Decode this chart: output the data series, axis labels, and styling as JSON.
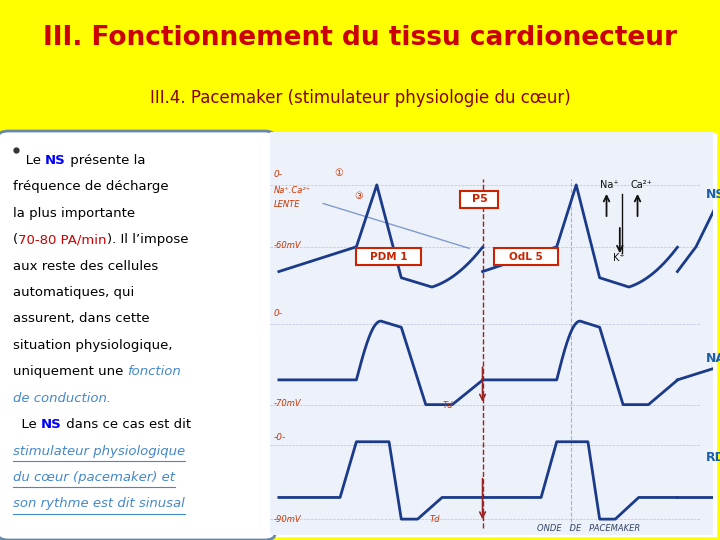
{
  "title": "III. Fonctionnement du tissu cardionecteur",
  "subtitle": "III.4. Pacemaker (stimulateur physiologie du cœur)",
  "title_color": "#cc0000",
  "subtitle_color": "#8b0000",
  "bg_color": "#ffff00",
  "text_box_border_color": "#6688aa",
  "body_bg": "#dde4ee",
  "diagram_bg": "#eef0f8",
  "ns_label_color": "#1a5fa8",
  "nav_label_color": "#1a5fa8",
  "rdpj_label_color": "#1a5fa8",
  "trace_color": "#1a3a8a",
  "annot_color": "#cc2200",
  "bullet_text_lines": [
    {
      "parts": [
        {
          "text": "   Le ",
          "bold": false,
          "color": "#000000",
          "italic": false
        },
        {
          "text": "NS",
          "bold": true,
          "color": "#0000ff",
          "italic": false
        },
        {
          "text": " présente la",
          "bold": false,
          "color": "#000000",
          "italic": false
        }
      ]
    },
    {
      "parts": [
        {
          "text": "fréquence de décharge",
          "bold": false,
          "color": "#000000",
          "italic": false
        }
      ]
    },
    {
      "parts": [
        {
          "text": "la plus importante",
          "bold": false,
          "color": "#000000",
          "italic": false
        }
      ]
    },
    {
      "parts": [
        {
          "text": "(",
          "bold": false,
          "color": "#000000",
          "italic": false
        },
        {
          "text": "70-80 PA/min",
          "bold": false,
          "color": "#cc0000",
          "italic": false
        },
        {
          "text": "). Il l’impose",
          "bold": false,
          "color": "#000000",
          "italic": false
        }
      ]
    },
    {
      "parts": [
        {
          "text": "aux reste des cellules",
          "bold": false,
          "color": "#000000",
          "italic": false
        }
      ]
    },
    {
      "parts": [
        {
          "text": "automatiques, qui",
          "bold": false,
          "color": "#000000",
          "italic": false
        }
      ]
    },
    {
      "parts": [
        {
          "text": "assurent, dans cette",
          "bold": false,
          "color": "#000000",
          "italic": false
        }
      ]
    },
    {
      "parts": [
        {
          "text": "situation physiologique,",
          "bold": false,
          "color": "#000000",
          "italic": false
        }
      ]
    },
    {
      "parts": [
        {
          "text": "uniquement une ",
          "bold": false,
          "color": "#000000",
          "italic": false
        },
        {
          "text": "fonction",
          "bold": false,
          "color": "#4488cc",
          "italic": true
        }
      ]
    },
    {
      "parts": [
        {
          "text": "de conduction.",
          "bold": false,
          "color": "#4488cc",
          "italic": true
        }
      ]
    },
    {
      "parts": [
        {
          "text": "  Le ",
          "bold": false,
          "color": "#000000",
          "italic": false
        },
        {
          "text": "NS",
          "bold": true,
          "color": "#0000ff",
          "italic": false
        },
        {
          "text": " dans ce cas est dit",
          "bold": false,
          "color": "#000000",
          "italic": false
        }
      ]
    },
    {
      "parts": [
        {
          "text": "stimulateur physiologique",
          "bold": false,
          "color": "#4488cc",
          "italic": true,
          "underline": true
        }
      ]
    },
    {
      "parts": [
        {
          "text": "du cœur (pacemaker) et",
          "bold": false,
          "color": "#4488cc",
          "italic": true,
          "underline": true
        }
      ]
    },
    {
      "parts": [
        {
          "text": "son rythme est dit sinusal",
          "bold": false,
          "color": "#4488cc",
          "italic": true,
          "underline": true
        }
      ]
    }
  ]
}
